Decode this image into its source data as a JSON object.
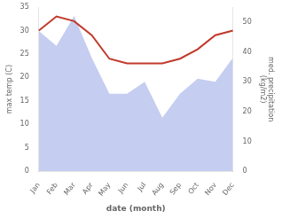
{
  "chart_data": {
    "type": "line",
    "xlabel": "date (month)",
    "ylabel": "max temp (C)",
    "y2label": "med. precipitation\n(kg/m2)",
    "categories": [
      "Jan",
      "Feb",
      "Mar",
      "Apr",
      "May",
      "Jun",
      "Jul",
      "Aug",
      "Sep",
      "Oct",
      "Nov",
      "Dec"
    ],
    "series": [
      {
        "type": "area",
        "color": "#c5cdf0",
        "axis": "y2",
        "values": [
          47,
          42,
          52,
          38,
          26,
          26,
          30,
          18,
          26,
          31,
          30,
          38
        ]
      },
      {
        "type": "line",
        "color": "#c0392b",
        "values": [
          30,
          33,
          32,
          29,
          24,
          23,
          23,
          23,
          24,
          26,
          29,
          30
        ]
      }
    ],
    "ylim": [
      0,
      35
    ],
    "yticks": [
      0,
      5,
      10,
      15,
      20,
      25,
      30,
      35
    ],
    "y2lim": [
      0,
      55
    ],
    "y2ticks": [
      0,
      10,
      20,
      30,
      40,
      50
    ],
    "grid": false
  }
}
